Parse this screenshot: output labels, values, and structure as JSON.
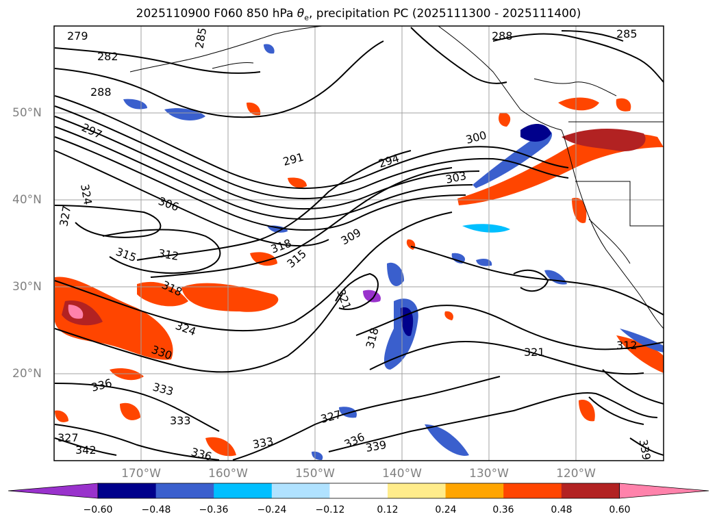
{
  "title": {
    "prefix": "2025110900 F060 850 hPa ",
    "theta": "θ",
    "theta_sub": "e",
    "suffix": ", precipitation PC (2025111300 - 2025111400)"
  },
  "lat_labels": [
    "50°N",
    "40°N",
    "30°N",
    "20°N"
  ],
  "lon_labels": [
    "170°W",
    "160°W",
    "150°W",
    "140°W",
    "130°W",
    "120°W"
  ],
  "contour_labels": [
    "279",
    "282",
    "285",
    "288",
    "297",
    "291",
    "294",
    "300",
    "303",
    "306",
    "309",
    "312",
    "315",
    "318",
    "321",
    "324",
    "327",
    "330",
    "333",
    "336",
    "339",
    "342"
  ],
  "colorbar": {
    "ticks": [
      "−0.60",
      "−0.48",
      "−0.36",
      "−0.24",
      "−0.12",
      "0.12",
      "0.24",
      "0.36",
      "0.48",
      "0.60"
    ],
    "colors": [
      "#9932CC",
      "#00008B",
      "#3A5FCD",
      "#00BFFF",
      "#B0E2FF",
      "#FFFFFF",
      "#FFEC8B",
      "#FFA500",
      "#FF4500",
      "#B22222",
      "#FF82AB"
    ]
  }
}
